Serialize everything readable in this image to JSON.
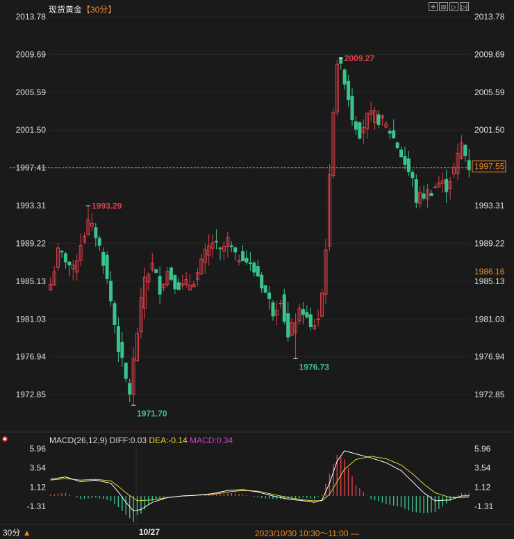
{
  "header": {
    "instrument": "现货黄金",
    "period": "【30分】",
    "tools": [
      {
        "name": "crosshair-icon",
        "glyph": "✛"
      },
      {
        "name": "zoom-out-icon",
        "glyph": "⊟"
      },
      {
        "name": "play-icon",
        "glyph": "▷"
      },
      {
        "name": "step-forward-icon",
        "glyph": "▷|"
      }
    ]
  },
  "macd_header": {
    "label": "MACD(26,12,9)",
    "diff": "DIFF:0.03",
    "dea": "DEA:-0.14",
    "macd": "MACD:0.34"
  },
  "footer": {
    "period": "30分",
    "arrow": "▲",
    "date": "10/27",
    "time_range": "2023/10/30 10:30～11:00 —"
  },
  "colors": {
    "up": "#e0404a",
    "down": "#38c48c",
    "diff_line": "#ffffff",
    "dea_line": "#e6d23a",
    "reference_line": "#f08c28",
    "background": "#1a1a1a"
  },
  "chart_data": [
    {
      "type": "candlestick",
      "yticks": [
        "2013.78",
        "2009.69",
        "2005.59",
        "2001.50",
        "1997.41",
        "1993.31",
        "1989.22",
        "1985.13",
        "1981.03",
        "1976.94",
        "1972.85"
      ],
      "ylim": [
        1969.8,
        2015.8
      ],
      "reference_line": {
        "value": 1997.41,
        "style": "dashed"
      },
      "price_tags": [
        {
          "value": 1997.55,
          "text": "1997.55"
        },
        {
          "value": 1986.16,
          "text": "1986.16"
        }
      ],
      "annotations": [
        {
          "text": "2009.27",
          "value": 2009.27,
          "kind": "high",
          "bar": 77
        },
        {
          "text": "1993.29",
          "value": 1993.29,
          "kind": "high",
          "bar": 10
        },
        {
          "text": "1971.70",
          "value": 1971.7,
          "kind": "low",
          "bar": 22
        },
        {
          "text": "1976.73",
          "value": 1976.73,
          "kind": "low",
          "bar": 65
        }
      ],
      "close_path": [
        [
          0,
          1984.8
        ],
        [
          2,
          1988.2
        ],
        [
          4,
          1987.6
        ],
        [
          6,
          1986.2
        ],
        [
          8,
          1989.3
        ],
        [
          10,
          1991.4
        ],
        [
          12,
          1990.2
        ],
        [
          14,
          1987.4
        ],
        [
          16,
          1983.0
        ],
        [
          18,
          1978.0
        ],
        [
          20,
          1974.4
        ],
        [
          21,
          1973.1
        ],
        [
          23,
          1979.7
        ],
        [
          25,
          1985.6
        ],
        [
          27,
          1986.8
        ],
        [
          29,
          1984.4
        ],
        [
          31,
          1986.2
        ],
        [
          33,
          1985.0
        ],
        [
          35,
          1984.5
        ],
        [
          37,
          1984.9
        ],
        [
          39,
          1985.9
        ],
        [
          41,
          1988.0
        ],
        [
          43,
          1989.4
        ],
        [
          45,
          1988.2
        ],
        [
          47,
          1989.5
        ],
        [
          49,
          1987.6
        ],
        [
          51,
          1988.0
        ],
        [
          53,
          1986.7
        ],
        [
          55,
          1985.8
        ],
        [
          57,
          1983.9
        ],
        [
          59,
          1981.9
        ],
        [
          61,
          1983.4
        ],
        [
          63,
          1978.9
        ],
        [
          65,
          1981.1
        ],
        [
          67,
          1982.0
        ],
        [
          69,
          1979.9
        ],
        [
          71,
          1981.2
        ],
        [
          72,
          1983.8
        ],
        [
          73,
          1989.0
        ],
        [
          74,
          1996.1
        ],
        [
          75,
          2004.0
        ],
        [
          76,
          2009.0
        ],
        [
          78,
          2007.1
        ],
        [
          80,
          2003.0
        ],
        [
          82,
          2001.3
        ],
        [
          84,
          2002.8
        ],
        [
          86,
          2003.0
        ],
        [
          88,
          2002.4
        ],
        [
          90,
          2001.4
        ],
        [
          92,
          1999.8
        ],
        [
          94,
          1997.9
        ],
        [
          96,
          1996.0
        ],
        [
          97,
          1994.0
        ],
        [
          99,
          1994.5
        ],
        [
          101,
          1995.0
        ],
        [
          103,
          1995.8
        ],
        [
          105,
          1995.4
        ],
        [
          107,
          1997.2
        ],
        [
          109,
          2000.0
        ],
        [
          110,
          1998.8
        ],
        [
          111,
          1997.55
        ]
      ]
    },
    {
      "type": "line",
      "title": "MACD(26,12,9)",
      "yticks": [
        "5.96",
        "3.54",
        "1.12",
        "-1.31"
      ],
      "ylim": [
        -3.2,
        7.2
      ],
      "series": [
        {
          "name": "DIFF",
          "points": [
            [
              0,
              2.1
            ],
            [
              4,
              2.4
            ],
            [
              8,
              1.8
            ],
            [
              12,
              2.0
            ],
            [
              16,
              1.6
            ],
            [
              18,
              0.5
            ],
            [
              20,
              -0.8
            ],
            [
              22,
              -1.9
            ],
            [
              24,
              -1.7
            ],
            [
              27,
              -0.8
            ],
            [
              31,
              -0.2
            ],
            [
              35,
              0.0
            ],
            [
              39,
              0.1
            ],
            [
              43,
              0.3
            ],
            [
              47,
              0.7
            ],
            [
              51,
              0.8
            ],
            [
              55,
              0.5
            ],
            [
              59,
              0.0
            ],
            [
              63,
              -0.4
            ],
            [
              67,
              -0.6
            ],
            [
              70,
              -0.8
            ],
            [
              72,
              -0.5
            ],
            [
              74,
              1.6
            ],
            [
              76,
              4.4
            ],
            [
              78,
              5.7
            ],
            [
              81,
              5.3
            ],
            [
              85,
              4.8
            ],
            [
              89,
              4.2
            ],
            [
              93,
              3.2
            ],
            [
              96,
              1.8
            ],
            [
              99,
              0.4
            ],
            [
              102,
              -0.6
            ],
            [
              106,
              -0.5
            ],
            [
              109,
              0.0
            ],
            [
              111,
              0.03
            ]
          ]
        },
        {
          "name": "DEA",
          "points": [
            [
              0,
              2.0
            ],
            [
              4,
              2.2
            ],
            [
              8,
              2.0
            ],
            [
              12,
              2.1
            ],
            [
              16,
              1.9
            ],
            [
              18,
              1.2
            ],
            [
              20,
              0.4
            ],
            [
              23,
              -0.6
            ],
            [
              27,
              -0.5
            ],
            [
              31,
              -0.2
            ],
            [
              35,
              0.0
            ],
            [
              39,
              0.1
            ],
            [
              43,
              0.2
            ],
            [
              47,
              0.5
            ],
            [
              51,
              0.7
            ],
            [
              55,
              0.6
            ],
            [
              59,
              0.2
            ],
            [
              63,
              -0.2
            ],
            [
              67,
              -0.5
            ],
            [
              70,
              -0.6
            ],
            [
              72,
              -0.6
            ],
            [
              74,
              0.2
            ],
            [
              76,
              1.8
            ],
            [
              78,
              3.4
            ],
            [
              81,
              4.6
            ],
            [
              85,
              5.0
            ],
            [
              89,
              4.7
            ],
            [
              93,
              3.9
            ],
            [
              96,
              2.8
            ],
            [
              99,
              1.5
            ],
            [
              102,
              0.4
            ],
            [
              106,
              -0.2
            ],
            [
              109,
              -0.2
            ],
            [
              111,
              -0.14
            ]
          ]
        }
      ]
    }
  ]
}
